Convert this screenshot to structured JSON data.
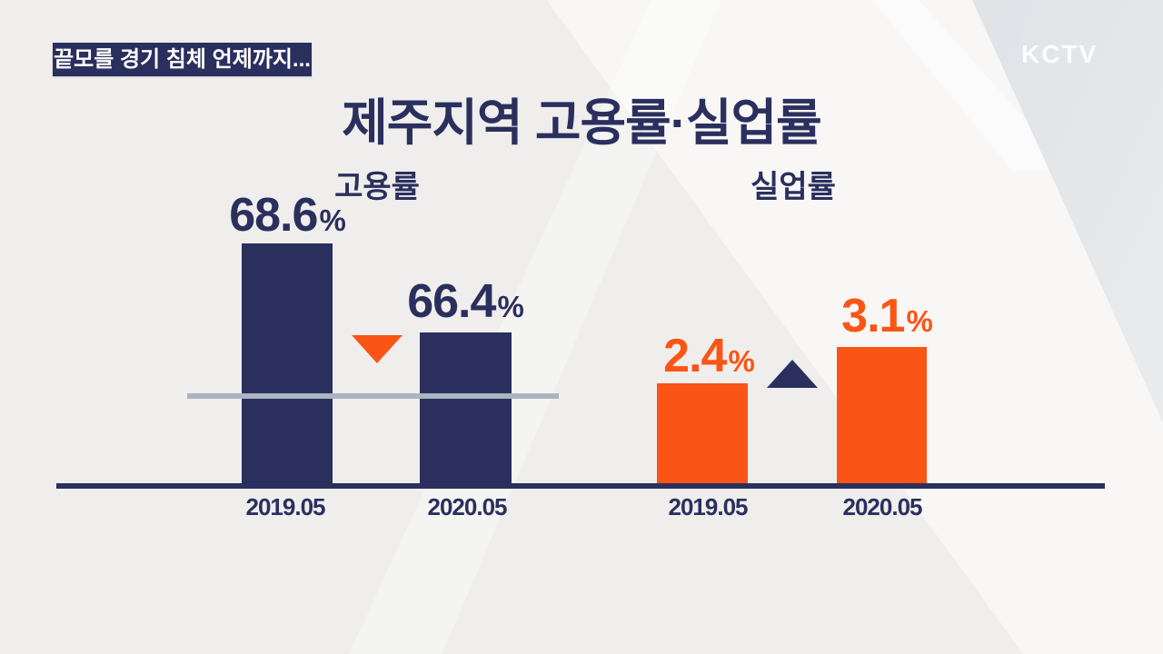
{
  "branding": {
    "logo": "KCTV"
  },
  "header": {
    "kicker": "끝모를 경기 침체 언제까지...",
    "title": "제주지역 고용률·실업률"
  },
  "colors": {
    "navy": "#2a2f5e",
    "orange": "#fb5516",
    "background": "#efeeec",
    "reference_line": "#a9b5c1",
    "corner_gradient_start": "#aab6c2",
    "corner_gradient_end": "#ededee",
    "kicker_bg": "#2a2f5e",
    "kicker_text": "#ffffff"
  },
  "chart_data": [
    {
      "type": "bar",
      "title": "고용률",
      "categories": [
        "2019.05",
        "2020.05"
      ],
      "values": [
        68.6,
        66.4
      ],
      "unit": "%",
      "bar_color": "#2a2f5e",
      "value_label_color": "#2a2f5e",
      "change_direction": "down",
      "change_marker_color": "#fb5516",
      "reference_line": true,
      "y_baseline_truncated": true
    },
    {
      "type": "bar",
      "title": "실업률",
      "categories": [
        "2019.05",
        "2020.05"
      ],
      "values": [
        2.4,
        3.1
      ],
      "unit": "%",
      "bar_color": "#fb5516",
      "value_label_color": "#fb5516",
      "change_direction": "up",
      "change_marker_color": "#2a2f5e",
      "reference_line": false,
      "y_baseline_truncated": true
    }
  ]
}
